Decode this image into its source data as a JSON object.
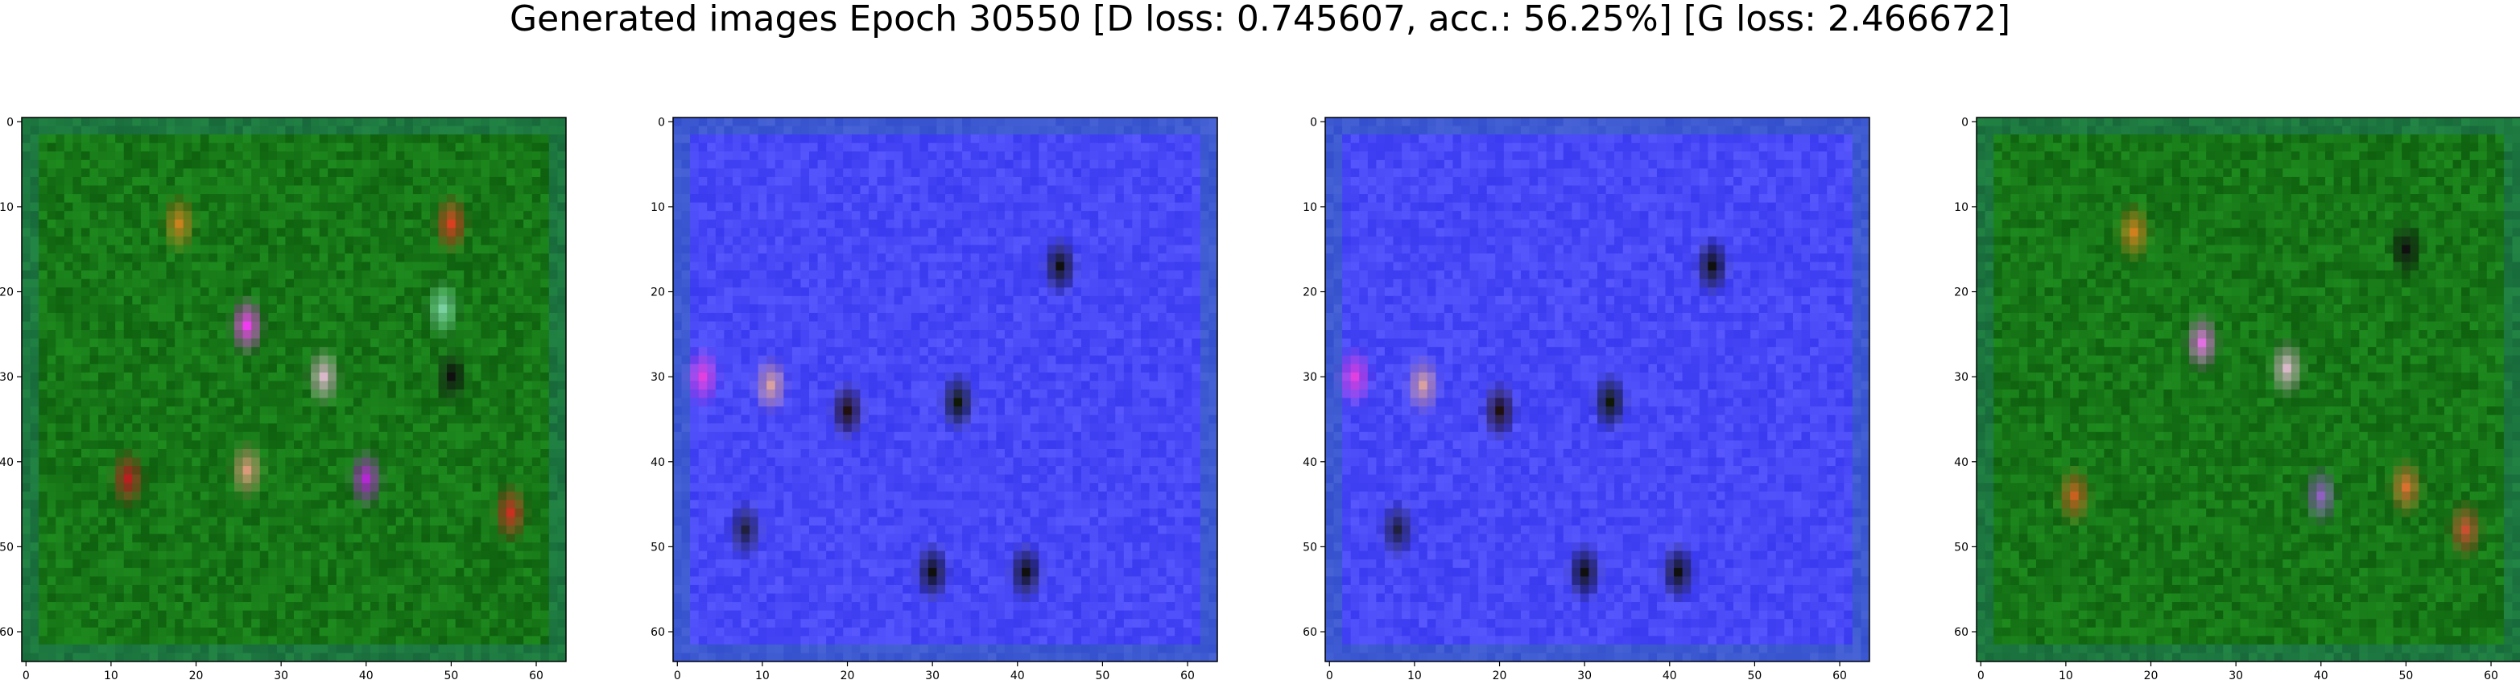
{
  "title": "Generated images Epoch 30550 [D loss: 0.745607, acc.: 56.25%] [G loss: 2.466672]",
  "axes": {
    "y_ticks": [
      "0",
      "10",
      "20",
      "30",
      "40",
      "50",
      "60"
    ],
    "x_ticks": [
      "0",
      "10",
      "20",
      "30",
      "40",
      "50",
      "60"
    ],
    "data_range": [
      0,
      64
    ]
  },
  "panels": [
    {
      "id": "panel-1",
      "base": "#1e8a1e",
      "noise": "#0d5c0d",
      "spots": [
        {
          "x": 18,
          "y": 12,
          "c": "#c8821e"
        },
        {
          "x": 26,
          "y": 24,
          "c": "#f03cf0"
        },
        {
          "x": 35,
          "y": 30,
          "c": "#d8b8c8"
        },
        {
          "x": 12,
          "y": 42,
          "c": "#b82020"
        },
        {
          "x": 26,
          "y": 41,
          "c": "#d89a7a"
        },
        {
          "x": 40,
          "y": 42,
          "c": "#b428d4"
        },
        {
          "x": 50,
          "y": 12,
          "c": "#d84020"
        },
        {
          "x": 57,
          "y": 46,
          "c": "#c83020"
        },
        {
          "x": 50,
          "y": 30,
          "c": "#101010"
        },
        {
          "x": 49,
          "y": 22,
          "c": "#7ad0a0"
        }
      ]
    },
    {
      "id": "panel-2",
      "base": "#3a3af0",
      "noise": "#5a5aff",
      "spots": [
        {
          "x": 3,
          "y": 30,
          "c": "#e040e0"
        },
        {
          "x": 11,
          "y": 31,
          "c": "#d8a0a0"
        },
        {
          "x": 20,
          "y": 34,
          "c": "#201010"
        },
        {
          "x": 33,
          "y": 33,
          "c": "#101808"
        },
        {
          "x": 45,
          "y": 17,
          "c": "#101010"
        },
        {
          "x": 30,
          "y": 53,
          "c": "#101010"
        },
        {
          "x": 41,
          "y": 53,
          "c": "#101010"
        },
        {
          "x": 8,
          "y": 48,
          "c": "#202040"
        }
      ]
    },
    {
      "id": "panel-3",
      "base": "#3a3af0",
      "noise": "#5a5aff",
      "spots": [
        {
          "x": 3,
          "y": 30,
          "c": "#e040e0"
        },
        {
          "x": 11,
          "y": 31,
          "c": "#d8a0a0"
        },
        {
          "x": 20,
          "y": 34,
          "c": "#201010"
        },
        {
          "x": 33,
          "y": 33,
          "c": "#101808"
        },
        {
          "x": 45,
          "y": 17,
          "c": "#101010"
        },
        {
          "x": 30,
          "y": 53,
          "c": "#101010"
        },
        {
          "x": 41,
          "y": 53,
          "c": "#101010"
        },
        {
          "x": 8,
          "y": 48,
          "c": "#202040"
        }
      ]
    },
    {
      "id": "panel-4",
      "base": "#1e8a1e",
      "noise": "#0d5c0d",
      "spots": [
        {
          "x": 18,
          "y": 13,
          "c": "#d0801e"
        },
        {
          "x": 26,
          "y": 26,
          "c": "#e070e0"
        },
        {
          "x": 36,
          "y": 29,
          "c": "#d8b8c8"
        },
        {
          "x": 11,
          "y": 44,
          "c": "#c86020"
        },
        {
          "x": 40,
          "y": 44,
          "c": "#9060c0"
        },
        {
          "x": 50,
          "y": 43,
          "c": "#d87030"
        },
        {
          "x": 50,
          "y": 15,
          "c": "#101010"
        },
        {
          "x": 57,
          "y": 48,
          "c": "#c85030"
        }
      ]
    }
  ]
}
